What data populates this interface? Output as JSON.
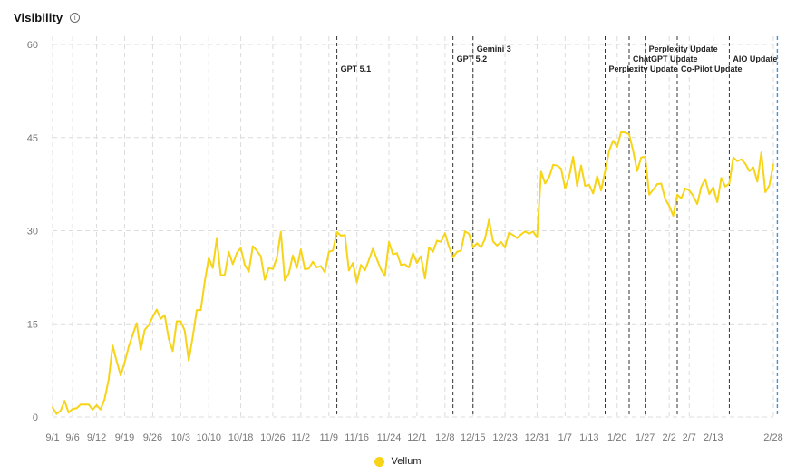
{
  "header": {
    "title": "Visibility",
    "info_icon": "info-circle-icon"
  },
  "colors": {
    "series": "#F7D417",
    "axis_text": "#777777",
    "grid": "#dcdcdc",
    "event_line": "#333333",
    "today_line": "#4a90d9"
  },
  "chart_data": {
    "type": "line",
    "title": "Visibility",
    "xlabel": "",
    "ylabel": "",
    "ylim": [
      0,
      60
    ],
    "yticks": [
      0,
      15,
      30,
      45,
      60
    ],
    "grid": true,
    "legend_position": "bottom-center",
    "x_start": "9/1",
    "x_end": "3/1",
    "xtick_labels": [
      "9/1",
      "9/6",
      "9/12",
      "9/19",
      "9/26",
      "10/3",
      "10/10",
      "10/18",
      "10/26",
      "11/2",
      "11/9",
      "11/16",
      "11/24",
      "12/1",
      "12/8",
      "12/15",
      "12/23",
      "12/31",
      "1/7",
      "1/13",
      "1/20",
      "1/27",
      "2/2",
      "2/7",
      "2/13",
      "2/28"
    ],
    "xtick_days": [
      0,
      5,
      11,
      18,
      25,
      32,
      39,
      47,
      55,
      62,
      69,
      76,
      84,
      91,
      98,
      105,
      113,
      121,
      128,
      134,
      141,
      148,
      154,
      159,
      165,
      180
    ],
    "series": [
      {
        "name": "Vellum",
        "color": "#F7D417",
        "values": [
          1.5,
          0.5,
          1.0,
          2.6,
          0.7,
          1.3,
          1.4,
          2.0,
          2.0,
          2.0,
          1.2,
          1.9,
          1.2,
          2.9,
          6.0,
          11.5,
          9.0,
          6.7,
          8.8,
          11.3,
          13.2,
          15.1,
          10.8,
          14.0,
          14.8,
          16.1,
          17.3,
          15.8,
          16.4,
          12.6,
          10.6,
          15.4,
          15.4,
          13.9,
          9.1,
          12.9,
          17.2,
          17.2,
          21.8,
          25.6,
          24.0,
          28.7,
          22.8,
          22.9,
          26.6,
          24.6,
          26.4,
          27.2,
          24.5,
          23.4,
          27.5,
          26.8,
          25.9,
          22.1,
          24.0,
          23.8,
          25.6,
          29.8,
          22.0,
          23.1,
          26.0,
          24.0,
          27.0,
          23.8,
          23.9,
          25.0,
          24.1,
          24.3,
          23.3,
          26.6,
          26.8,
          29.8,
          29.2,
          29.3,
          23.6,
          24.8,
          21.7,
          24.5,
          23.6,
          25.3,
          27.1,
          25.4,
          23.8,
          22.7,
          28.2,
          26.2,
          26.4,
          24.5,
          24.6,
          24.1,
          26.4,
          24.8,
          25.9,
          22.3,
          27.3,
          26.6,
          28.4,
          28.2,
          29.6,
          27.4,
          25.7,
          26.6,
          26.8,
          29.9,
          29.5,
          27.3,
          28.0,
          27.3,
          28.7,
          31.8,
          28.3,
          27.6,
          28.2,
          27.3,
          29.7,
          29.3,
          28.8,
          29.4,
          29.9,
          29.5,
          29.9,
          28.9,
          39.5,
          37.6,
          38.6,
          40.6,
          40.5,
          40.0,
          36.8,
          38.7,
          41.9,
          37.2,
          40.5,
          37.2,
          37.4,
          36.0,
          38.8,
          36.5,
          39.6,
          42.9,
          44.5,
          43.5,
          45.9,
          45.8,
          45.5,
          42.8,
          39.6,
          41.8,
          41.9,
          35.8,
          36.6,
          37.5,
          37.6,
          35.1,
          34.0,
          32.4,
          35.8,
          35.2,
          36.8,
          36.5,
          35.6,
          34.3,
          37.1,
          38.3,
          35.9,
          37.0,
          34.6,
          38.5,
          37.1,
          37.6,
          41.8,
          41.2,
          41.5,
          40.8,
          39.6,
          40.2,
          37.9,
          42.6,
          36.2,
          37.3,
          40.7
        ]
      }
    ],
    "annotations": [
      {
        "label": "GPT 5.1",
        "day": 71,
        "row": 2,
        "style": "dashed"
      },
      {
        "label": "GPT 5.2",
        "day": 100,
        "row": 1,
        "style": "dashed"
      },
      {
        "label": "Gemini 3",
        "day": 105,
        "row": 0,
        "style": "dashed"
      },
      {
        "label": "Perplexity Update",
        "day": 138,
        "row": 2,
        "style": "dashed"
      },
      {
        "label": "ChatGPT Update",
        "day": 144,
        "row": 1,
        "style": "dashed"
      },
      {
        "label": "Perplexity Update",
        "day": 148,
        "row": 0,
        "style": "dashed"
      },
      {
        "label": "Co-Pilot Update",
        "day": 156,
        "row": 2,
        "style": "dashed"
      },
      {
        "label": "AIO Update",
        "day": 169,
        "row": 1,
        "style": "dashed"
      },
      {
        "label": "",
        "day": 181,
        "row": -1,
        "style": "today"
      }
    ]
  }
}
